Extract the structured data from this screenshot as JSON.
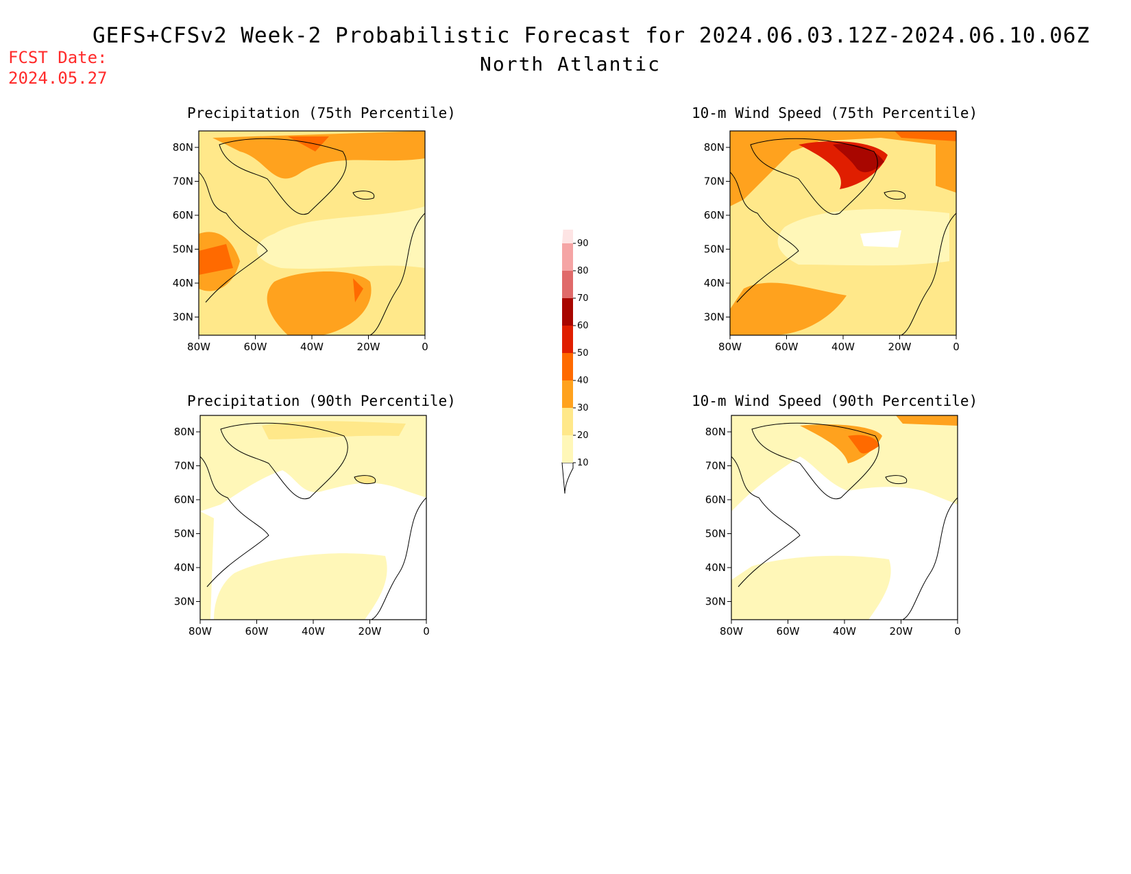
{
  "header": {
    "title": "GEFS+CFSv2 Week-2 Probabilistic Forecast for 2024.06.03.12Z-2024.06.10.06Z",
    "subtitle": "North Atlantic",
    "fcst_label": "FCST Date:",
    "fcst_date": "2024.05.27"
  },
  "panels": [
    {
      "title": "Precipitation (75th Percentile)"
    },
    {
      "title": "10-m Wind Speed (75th Percentile)"
    },
    {
      "title": "Precipitation (90th Percentile)"
    },
    {
      "title": "10-m Wind Speed (90th Percentile)"
    }
  ],
  "axes": {
    "lat_ticks": [
      "80N",
      "70N",
      "60N",
      "50N",
      "40N",
      "30N"
    ],
    "lon_ticks": [
      "80W",
      "60W",
      "40W",
      "20W",
      "0"
    ]
  },
  "colorbar": {
    "levels": [
      "10",
      "20",
      "30",
      "40",
      "50",
      "60",
      "70",
      "80",
      "90"
    ],
    "colors": [
      "#fff7b8",
      "#ffe88a",
      "#ffa21e",
      "#ff6a00",
      "#e01e00",
      "#a80600",
      "#e06a6a",
      "#f5a5a5",
      "#fde4e4"
    ]
  }
}
